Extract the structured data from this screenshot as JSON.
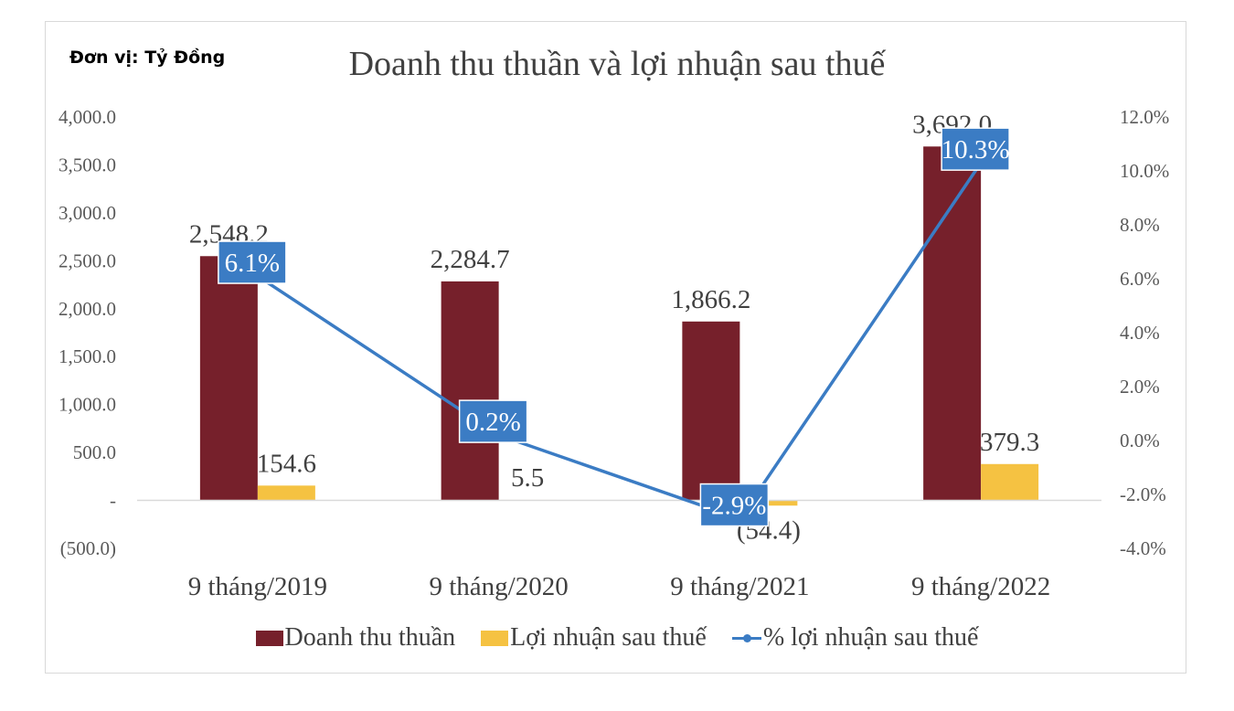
{
  "unit_label": "Đơn vị: Tỷ Đồng",
  "colors": {
    "revenue": "#76202b",
    "profit": "#f5c242",
    "percent": "#3b7cc4",
    "label_bg": "#3b7cc4"
  },
  "chart_data": {
    "type": "bar+line",
    "title": "Doanh thu thuần và lợi nhuận sau thuế",
    "categories": [
      "9 tháng/2019",
      "9 tháng/2020",
      "9 tháng/2021",
      "9 tháng/2022"
    ],
    "series": [
      {
        "name": "Doanh thu thuần",
        "type": "bar",
        "axis": "left",
        "values": [
          2548.2,
          2284.7,
          1866.2,
          3692.0
        ],
        "labels": [
          "2,548.2",
          "2,284.7",
          "1,866.2",
          "3,692.0"
        ]
      },
      {
        "name": "Lợi nhuận sau thuế",
        "type": "bar",
        "axis": "left",
        "values": [
          154.6,
          5.5,
          -54.4,
          379.3
        ],
        "labels": [
          "154.6",
          "5.5",
          "(54.4)",
          "379.3"
        ]
      },
      {
        "name": "% lợi nhuận sau thuế",
        "type": "line",
        "axis": "right",
        "values": [
          6.1,
          0.2,
          -2.9,
          10.3
        ],
        "labels": [
          "6.1%",
          "0.2%",
          "-2.9%",
          "10.3%"
        ]
      }
    ],
    "y_left": {
      "min": -500,
      "max": 4000,
      "step": 500,
      "tick_labels": [
        "(500.0)",
        "-",
        "500.0",
        "1,000.0",
        "1,500.0",
        "2,000.0",
        "2,500.0",
        "3,000.0",
        "3,500.0",
        "4,000.0"
      ]
    },
    "y_right": {
      "min": -4,
      "max": 12,
      "step": 2,
      "tick_labels": [
        "-4.0%",
        "-2.0%",
        "0.0%",
        "2.0%",
        "4.0%",
        "6.0%",
        "8.0%",
        "10.0%",
        "12.0%"
      ]
    },
    "legend": [
      "Doanh thu thuần",
      "Lợi nhuận sau thuế",
      "% lợi nhuận sau thuế"
    ],
    "legend_position": "bottom",
    "grid": false
  }
}
